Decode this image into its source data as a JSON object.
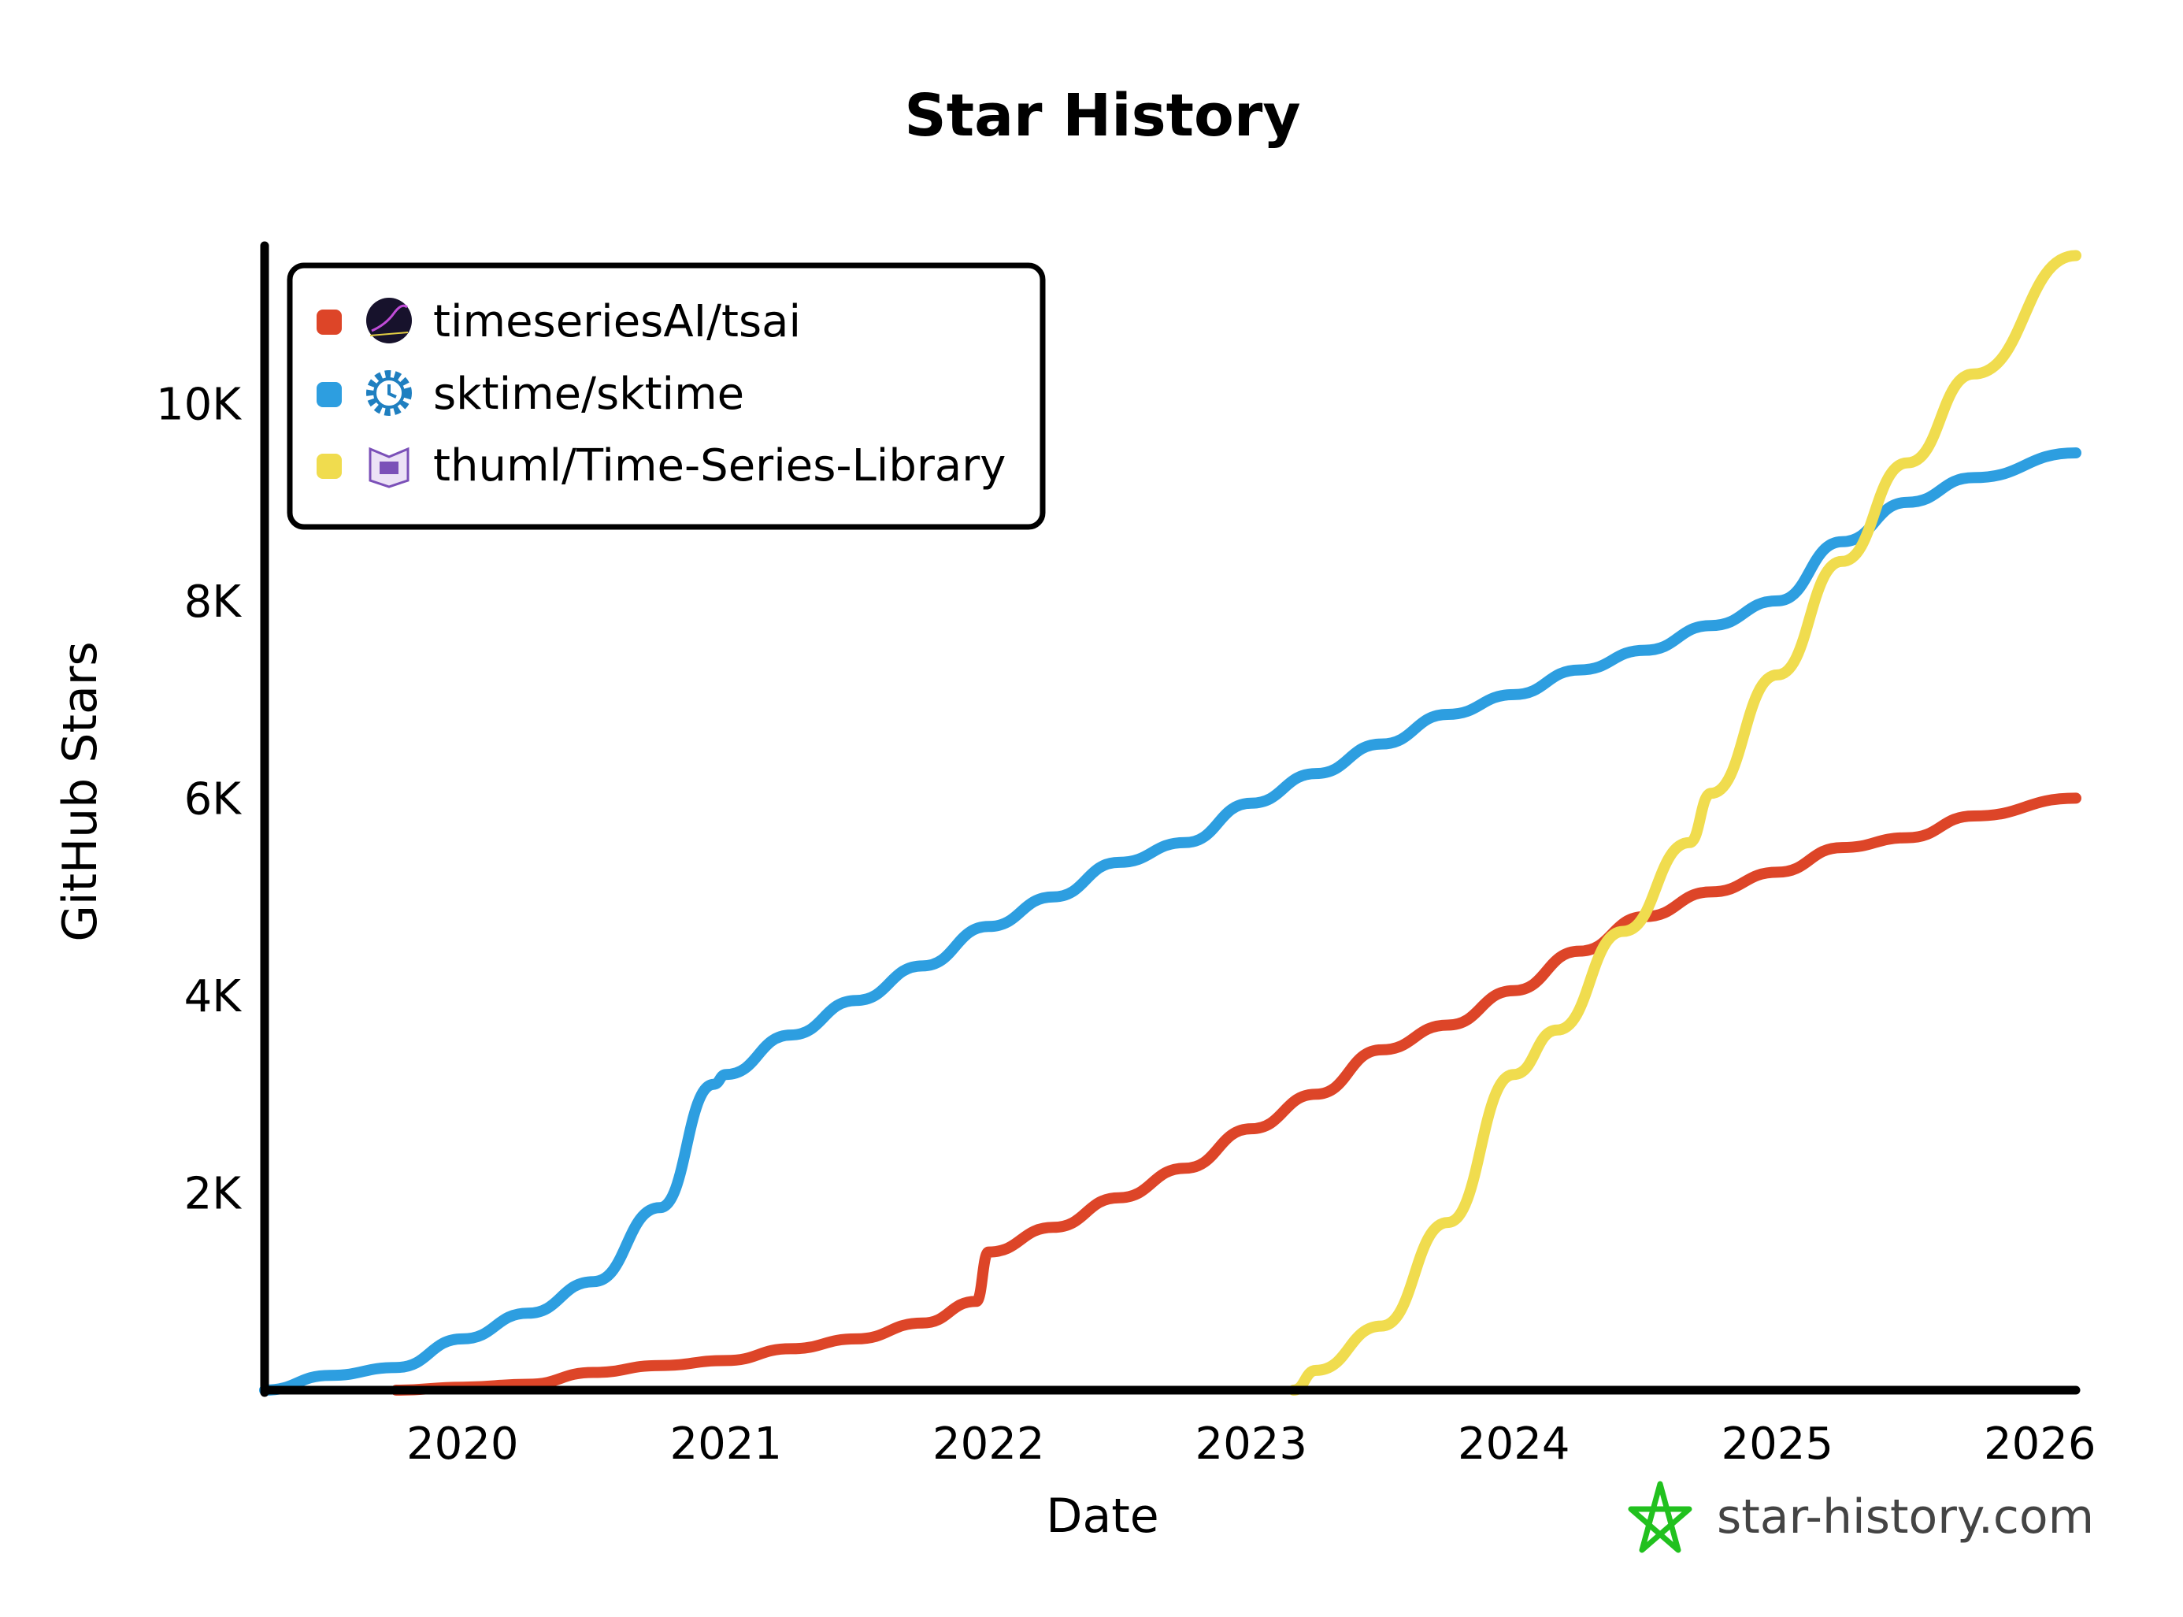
{
  "chart_data": {
    "type": "line",
    "title": "Star History",
    "xlabel": "Date",
    "ylabel": "GitHub Stars",
    "x_ticks": [
      "2020",
      "2021",
      "2022",
      "2023",
      "2024",
      "2025",
      "2026"
    ],
    "y_ticks": [
      "2K",
      "4K",
      "6K",
      "8K",
      "10K"
    ],
    "xlim": [
      "2019-04-01",
      "2026-02-20"
    ],
    "ylim": [
      0,
      11600
    ],
    "grid": false,
    "legend_position": "top-left",
    "series": [
      {
        "name": "timeseriesAI/tsai",
        "color": "#dd4528",
        "icon": "tsai-avatar-icon",
        "points": [
          [
            "2019-10-01",
            0
          ],
          [
            "2020-01-01",
            30
          ],
          [
            "2020-04-01",
            60
          ],
          [
            "2020-07-01",
            180
          ],
          [
            "2020-10-01",
            250
          ],
          [
            "2021-01-01",
            300
          ],
          [
            "2021-04-01",
            420
          ],
          [
            "2021-07-01",
            520
          ],
          [
            "2021-10-01",
            680
          ],
          [
            "2021-12-15",
            900
          ],
          [
            "2022-01-01",
            1400
          ],
          [
            "2022-04-01",
            1650
          ],
          [
            "2022-07-01",
            1950
          ],
          [
            "2022-10-01",
            2250
          ],
          [
            "2023-01-01",
            2650
          ],
          [
            "2023-04-01",
            3000
          ],
          [
            "2023-07-01",
            3450
          ],
          [
            "2023-10-01",
            3700
          ],
          [
            "2024-01-01",
            4050
          ],
          [
            "2024-04-01",
            4450
          ],
          [
            "2024-07-01",
            4800
          ],
          [
            "2024-10-01",
            5050
          ],
          [
            "2025-01-01",
            5250
          ],
          [
            "2025-04-01",
            5500
          ],
          [
            "2025-07-01",
            5600
          ],
          [
            "2025-10-01",
            5820
          ],
          [
            "2026-02-20",
            6000
          ]
        ]
      },
      {
        "name": "sktime/sktime",
        "color": "#2d9ee0",
        "icon": "sktime-gear-clock-icon",
        "points": [
          [
            "2019-04-01",
            0
          ],
          [
            "2019-07-01",
            150
          ],
          [
            "2019-10-01",
            230
          ],
          [
            "2020-01-01",
            520
          ],
          [
            "2020-04-01",
            780
          ],
          [
            "2020-07-01",
            1100
          ],
          [
            "2020-10-01",
            1850
          ],
          [
            "2020-12-15",
            3100
          ],
          [
            "2021-01-01",
            3200
          ],
          [
            "2021-04-01",
            3600
          ],
          [
            "2021-07-01",
            3950
          ],
          [
            "2021-10-01",
            4300
          ],
          [
            "2022-01-01",
            4700
          ],
          [
            "2022-04-01",
            5000
          ],
          [
            "2022-07-01",
            5350
          ],
          [
            "2022-10-01",
            5550
          ],
          [
            "2023-01-01",
            5950
          ],
          [
            "2023-04-01",
            6250
          ],
          [
            "2023-07-01",
            6550
          ],
          [
            "2023-10-01",
            6850
          ],
          [
            "2024-01-01",
            7050
          ],
          [
            "2024-04-01",
            7300
          ],
          [
            "2024-07-01",
            7500
          ],
          [
            "2024-10-01",
            7750
          ],
          [
            "2025-01-01",
            8000
          ],
          [
            "2025-04-01",
            8600
          ],
          [
            "2025-07-01",
            9000
          ],
          [
            "2025-10-01",
            9250
          ],
          [
            "2026-02-20",
            9500
          ]
        ]
      },
      {
        "name": "thuml/Time-Series-Library",
        "color": "#f0dc4e",
        "icon": "time-series-library-book-icon",
        "points": [
          [
            "2023-03-01",
            0
          ],
          [
            "2023-04-01",
            200
          ],
          [
            "2023-07-01",
            650
          ],
          [
            "2023-10-01",
            1700
          ],
          [
            "2024-01-01",
            3200
          ],
          [
            "2024-03-01",
            3650
          ],
          [
            "2024-06-01",
            4650
          ],
          [
            "2024-09-01",
            5550
          ],
          [
            "2024-10-01",
            6050
          ],
          [
            "2025-01-01",
            7250
          ],
          [
            "2025-04-01",
            8400
          ],
          [
            "2025-07-01",
            9400
          ],
          [
            "2025-10-01",
            10300
          ],
          [
            "2026-02-20",
            11500
          ]
        ]
      }
    ]
  },
  "footer": {
    "brand": "star-history.com",
    "brand_icon": "star-history-logo-icon",
    "brand_color": "#21c11e"
  }
}
